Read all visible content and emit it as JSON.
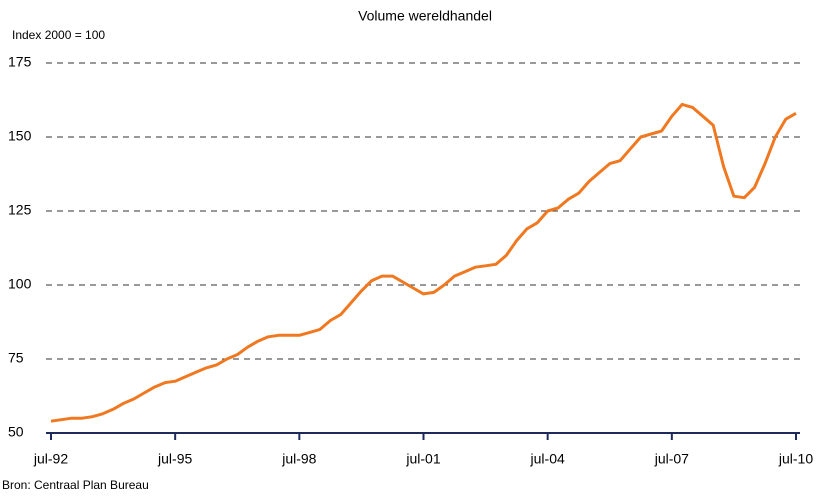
{
  "chart_data": {
    "type": "line",
    "title": "Volume wereldhandel",
    "y_label": "Index 2000 = 100",
    "source": "Bron: Centraal Plan Bureau",
    "categories": [
      "jul-92",
      null,
      null,
      null,
      null,
      null,
      null,
      null,
      null,
      null,
      null,
      null,
      "jul-95",
      null,
      null,
      null,
      null,
      null,
      null,
      null,
      null,
      null,
      null,
      null,
      "jul-98",
      null,
      null,
      null,
      null,
      null,
      null,
      null,
      null,
      null,
      null,
      null,
      "jul-01",
      null,
      null,
      null,
      null,
      null,
      null,
      null,
      null,
      null,
      null,
      null,
      "jul-04",
      null,
      null,
      null,
      null,
      null,
      null,
      null,
      null,
      null,
      null,
      null,
      "jul-07",
      null,
      null,
      null,
      null,
      null,
      null,
      null,
      null,
      null,
      null,
      null,
      "jul-10"
    ],
    "series": [
      {
        "name": "Volume wereldhandel",
        "color": "#f07820",
        "values": [
          54,
          54.5,
          55,
          55,
          55.5,
          56.5,
          58,
          60,
          61.5,
          63.5,
          65.5,
          67,
          67.5,
          69,
          70.5,
          72,
          73,
          75,
          76.5,
          79,
          81,
          82.5,
          83,
          83,
          83,
          84,
          85,
          88,
          90,
          94,
          98,
          101.5,
          103,
          103,
          101,
          99,
          97,
          97.5,
          100,
          103,
          104.5,
          106,
          106.5,
          107,
          110,
          115,
          119,
          121,
          125,
          126,
          129,
          131,
          135,
          138,
          141,
          142,
          146,
          150,
          151,
          152,
          157,
          161,
          160,
          157,
          154,
          140,
          130,
          129.5,
          133,
          141,
          150,
          156,
          158
        ]
      }
    ],
    "ylim": [
      50,
      175
    ],
    "yticks": [
      50,
      75,
      100,
      125,
      150,
      175
    ],
    "grid": true
  }
}
